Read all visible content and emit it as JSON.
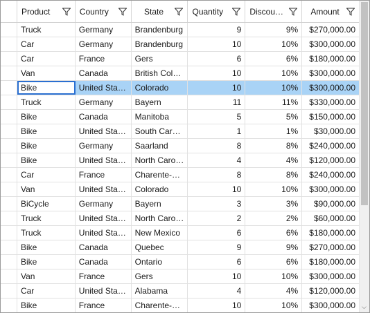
{
  "columns": {
    "product": "Product",
    "country": "Country",
    "state": "State",
    "quantity": "Quantity",
    "discount": "Discou…",
    "amount": "Amount"
  },
  "rows": [
    [
      "Truck",
      "Germany",
      "Brandenburg",
      "9",
      "9%",
      "$270,000.00"
    ],
    [
      "Car",
      "Germany",
      "Brandenburg",
      "10",
      "10%",
      "$300,000.00"
    ],
    [
      "Car",
      "France",
      "Gers",
      "6",
      "6%",
      "$180,000.00"
    ],
    [
      "Van",
      "Canada",
      "British Colu…",
      "10",
      "10%",
      "$300,000.00"
    ],
    [
      "Bike",
      "United Stat…",
      "Colorado",
      "10",
      "10%",
      "$300,000.00"
    ],
    [
      "Truck",
      "Germany",
      "Bayern",
      "11",
      "11%",
      "$330,000.00"
    ],
    [
      "Bike",
      "Canada",
      "Manitoba",
      "5",
      "5%",
      "$150,000.00"
    ],
    [
      "Bike",
      "United Stat…",
      "South Caro…",
      "1",
      "1%",
      "$30,000.00"
    ],
    [
      "Bike",
      "Germany",
      "Saarland",
      "8",
      "8%",
      "$240,000.00"
    ],
    [
      "Bike",
      "United Stat…",
      "North Caro…",
      "4",
      "4%",
      "$120,000.00"
    ],
    [
      "Car",
      "France",
      "Charente-…",
      "8",
      "8%",
      "$240,000.00"
    ],
    [
      "Van",
      "United Stat…",
      "Colorado",
      "10",
      "10%",
      "$300,000.00"
    ],
    [
      "BiCycle",
      "Germany",
      "Bayern",
      "3",
      "3%",
      "$90,000.00"
    ],
    [
      "Truck",
      "United Stat…",
      "North Caro…",
      "2",
      "2%",
      "$60,000.00"
    ],
    [
      "Truck",
      "United Stat…",
      "New Mexico",
      "6",
      "6%",
      "$180,000.00"
    ],
    [
      "Bike",
      "Canada",
      "Quebec",
      "9",
      "9%",
      "$270,000.00"
    ],
    [
      "Bike",
      "Canada",
      "Ontario",
      "6",
      "6%",
      "$180,000.00"
    ],
    [
      "Van",
      "France",
      "Gers",
      "10",
      "10%",
      "$300,000.00"
    ],
    [
      "Car",
      "United Stat…",
      "Alabama",
      "4",
      "4%",
      "$120,000.00"
    ],
    [
      "Bike",
      "France",
      "Charente-…",
      "10",
      "10%",
      "$300,000.00"
    ]
  ],
  "selected_row": 4,
  "icons": {
    "filter": "filter-icon",
    "scroll_down": "chevron-down-icon"
  }
}
